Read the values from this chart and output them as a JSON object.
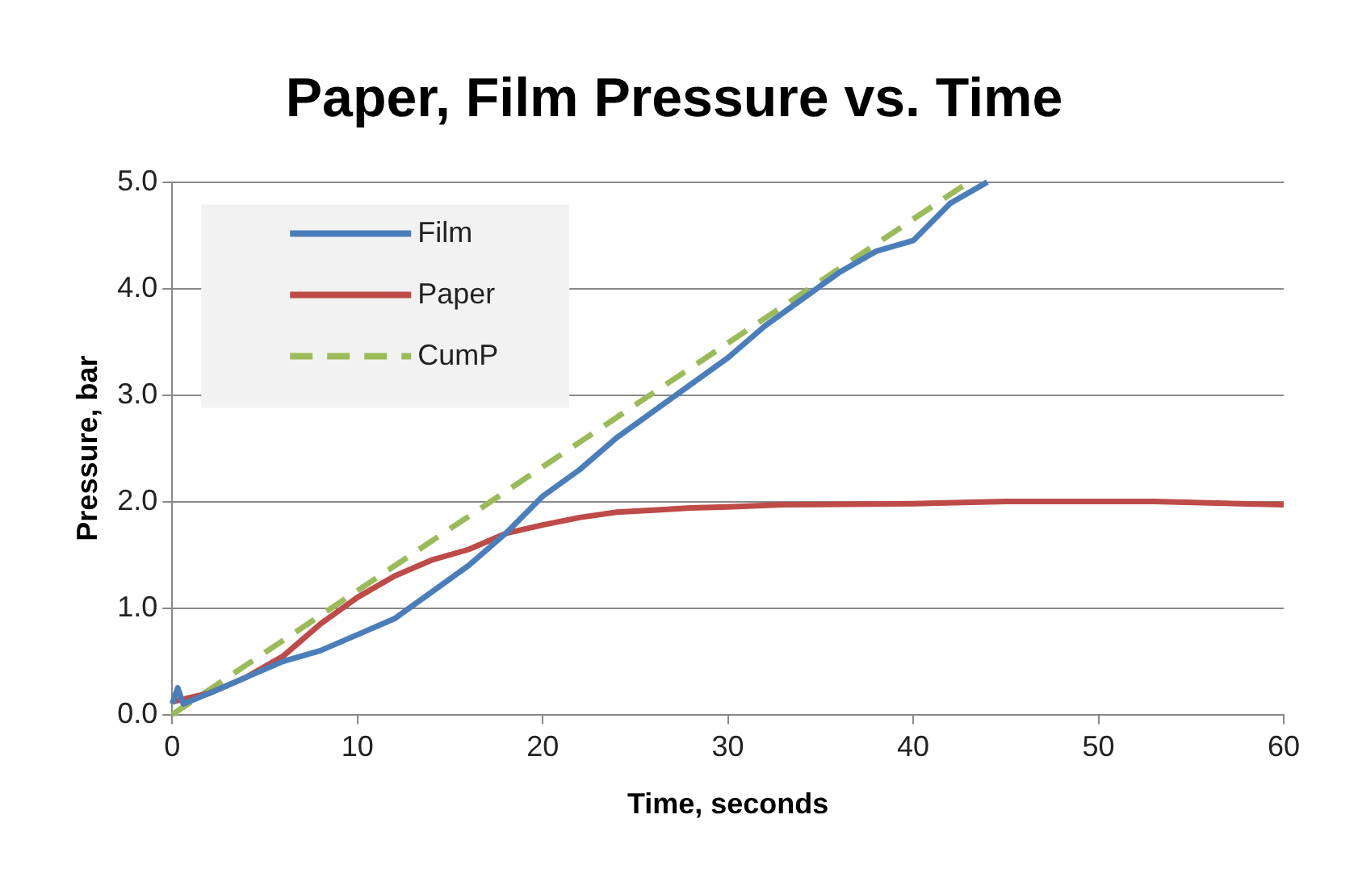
{
  "chart_data": {
    "type": "line",
    "title": "Paper, Film Pressure vs. Time",
    "xlabel": "Time, seconds",
    "ylabel": "Pressure, bar",
    "xlim": [
      0,
      60
    ],
    "xticks": [
      0,
      10,
      20,
      30,
      40,
      50,
      60
    ],
    "ylim": [
      0,
      5
    ],
    "yticks": [
      {
        "value": 0,
        "label": "0.0"
      },
      {
        "value": 1,
        "label": "1.0"
      },
      {
        "value": 2,
        "label": "2.0"
      },
      {
        "value": 3,
        "label": "3.0"
      },
      {
        "value": 4,
        "label": "4.0"
      },
      {
        "value": 5,
        "label": "5.0"
      }
    ],
    "grid": "y",
    "legend": "top left",
    "marker": "none",
    "series": [
      {
        "name": "Film",
        "color": "#4a7ebb",
        "line_style": "solid",
        "x": [
          0,
          0.3,
          0.6,
          2,
          4,
          6,
          8,
          10,
          12,
          14,
          16,
          18,
          20,
          22,
          24,
          26,
          28,
          30,
          32,
          34,
          36,
          38,
          40,
          42,
          44
        ],
        "values": [
          0.1,
          0.25,
          0.1,
          0.2,
          0.35,
          0.5,
          0.6,
          0.75,
          0.9,
          1.15,
          1.4,
          1.7,
          2.05,
          2.3,
          2.6,
          2.85,
          3.1,
          3.35,
          3.65,
          3.9,
          4.15,
          4.35,
          4.45,
          4.8,
          5.0
        ]
      },
      {
        "name": "Paper",
        "color": "#be4b48",
        "line_style": "solid",
        "x": [
          0,
          2,
          4,
          6,
          8,
          10,
          12,
          14,
          16,
          18,
          20,
          22,
          24,
          26,
          28,
          30,
          33,
          40,
          45,
          53,
          60
        ],
        "values": [
          0.12,
          0.2,
          0.35,
          0.55,
          0.85,
          1.1,
          1.3,
          1.45,
          1.55,
          1.7,
          1.78,
          1.85,
          1.9,
          1.92,
          1.94,
          1.95,
          1.97,
          1.98,
          2.0,
          2.0,
          1.97
        ]
      },
      {
        "name": "CumP",
        "color": "#9bbb59",
        "line_style": "dashed",
        "x": [
          0,
          43
        ],
        "values": [
          0,
          5
        ]
      }
    ]
  }
}
